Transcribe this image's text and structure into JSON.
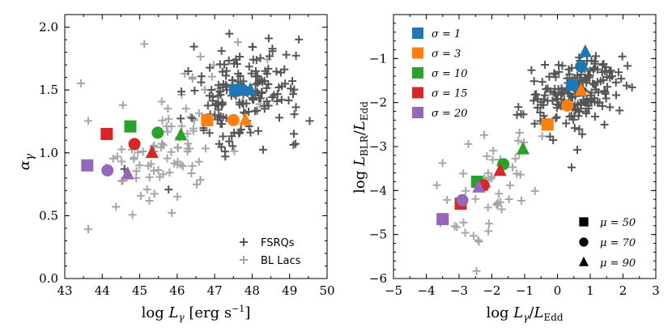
{
  "chart_data": [
    {
      "type": "scatter",
      "title": "",
      "xlabel": "log L_γ [erg s⁻¹]",
      "ylabel": "α_γ",
      "xlim": [
        43,
        50
      ],
      "ylim": [
        0.0,
        2.1
      ],
      "xticks": [
        "43",
        "44",
        "45",
        "46",
        "47",
        "48",
        "49",
        "50"
      ],
      "yticks": [
        "0.0",
        "0.5",
        "1.0",
        "1.5",
        "2.0"
      ],
      "legend": {
        "position": "bottom-right",
        "entries": [
          {
            "name": "FSRQs",
            "color": "#555555",
            "marker": "plus"
          },
          {
            "name": "BL Lacs",
            "color": "#a6a6a6",
            "marker": "plus"
          }
        ]
      },
      "series": [
        {
          "name": "σ = 1",
          "color": "#1f77b4",
          "points": [
            {
              "marker": "square",
              "x": 47.55,
              "y": 1.5
            },
            {
              "marker": "circle",
              "x": 47.75,
              "y": 1.5
            },
            {
              "marker": "triangle",
              "x": 47.95,
              "y": 1.5
            }
          ]
        },
        {
          "name": "σ = 3",
          "color": "#ff7f0e",
          "points": [
            {
              "marker": "square",
              "x": 46.8,
              "y": 1.26
            },
            {
              "marker": "circle",
              "x": 47.5,
              "y": 1.26
            },
            {
              "marker": "triangle",
              "x": 47.82,
              "y": 1.26
            }
          ]
        },
        {
          "name": "σ = 10",
          "color": "#2ca02c",
          "points": [
            {
              "marker": "square",
              "x": 44.75,
              "y": 1.21
            },
            {
              "marker": "circle",
              "x": 45.48,
              "y": 1.16
            },
            {
              "marker": "triangle",
              "x": 46.1,
              "y": 1.14
            }
          ]
        },
        {
          "name": "σ = 15",
          "color": "#d62728",
          "points": [
            {
              "marker": "square",
              "x": 44.12,
              "y": 1.15
            },
            {
              "marker": "circle",
              "x": 44.86,
              "y": 1.07
            },
            {
              "marker": "triangle",
              "x": 45.33,
              "y": 1.0
            }
          ]
        },
        {
          "name": "σ = 20",
          "color": "#9467bd",
          "points": [
            {
              "marker": "square",
              "x": 43.6,
              "y": 0.9
            },
            {
              "marker": "circle",
              "x": 44.14,
              "y": 0.86
            },
            {
              "marker": "triangle",
              "x": 44.68,
              "y": 0.83
            }
          ]
        }
      ]
    },
    {
      "type": "scatter",
      "title": "",
      "xlabel": "log L_γ / L_Edd",
      "ylabel": "log L_BLR / L_Edd",
      "xlim": [
        -5,
        3
      ],
      "ylim": [
        -6,
        0
      ],
      "xticks": [
        "−5",
        "−4",
        "−3",
        "−2",
        "−1",
        "0",
        "1",
        "2",
        "3"
      ],
      "yticks": [
        "−6",
        "−5",
        "−4",
        "−3",
        "−2",
        "−1"
      ],
      "legend_sigma": {
        "position": "top-left",
        "entries": [
          {
            "name": "σ = 1",
            "color": "#1f77b4"
          },
          {
            "name": "σ = 3",
            "color": "#ff7f0e"
          },
          {
            "name": "σ = 10",
            "color": "#2ca02c"
          },
          {
            "name": "σ = 15",
            "color": "#d62728"
          },
          {
            "name": "σ = 20",
            "color": "#9467bd"
          }
        ]
      },
      "legend_mu": {
        "position": "bottom-right",
        "entries": [
          {
            "name": "μ = 50",
            "marker": "square"
          },
          {
            "name": "μ = 70",
            "marker": "circle"
          },
          {
            "name": "μ = 90",
            "marker": "triangle"
          }
        ]
      },
      "series": [
        {
          "name": "σ = 1",
          "color": "#1f77b4",
          "points": [
            {
              "marker": "square",
              "x": 0.45,
              "y": -1.6
            },
            {
              "marker": "circle",
              "x": 0.72,
              "y": -1.18
            },
            {
              "marker": "triangle",
              "x": 0.85,
              "y": -0.85
            }
          ]
        },
        {
          "name": "σ = 3",
          "color": "#ff7f0e",
          "points": [
            {
              "marker": "square",
              "x": -0.3,
              "y": -2.5
            },
            {
              "marker": "circle",
              "x": 0.3,
              "y": -2.07
            },
            {
              "marker": "triangle",
              "x": 0.72,
              "y": -1.73
            }
          ]
        },
        {
          "name": "σ = 10",
          "color": "#2ca02c",
          "points": [
            {
              "marker": "square",
              "x": -2.45,
              "y": -3.8
            },
            {
              "marker": "circle",
              "x": -1.65,
              "y": -3.4
            },
            {
              "marker": "triangle",
              "x": -1.05,
              "y": -3.06
            }
          ]
        },
        {
          "name": "σ = 15",
          "color": "#d62728",
          "points": [
            {
              "marker": "square",
              "x": -2.95,
              "y": -4.3
            },
            {
              "marker": "circle",
              "x": -2.25,
              "y": -3.88
            },
            {
              "marker": "triangle",
              "x": -1.75,
              "y": -3.55
            }
          ]
        },
        {
          "name": "σ = 20",
          "color": "#9467bd",
          "points": [
            {
              "marker": "square",
              "x": -3.5,
              "y": -4.65
            },
            {
              "marker": "circle",
              "x": -2.9,
              "y": -4.22
            },
            {
              "marker": "triangle",
              "x": -2.4,
              "y": -3.93
            }
          ]
        }
      ]
    }
  ]
}
